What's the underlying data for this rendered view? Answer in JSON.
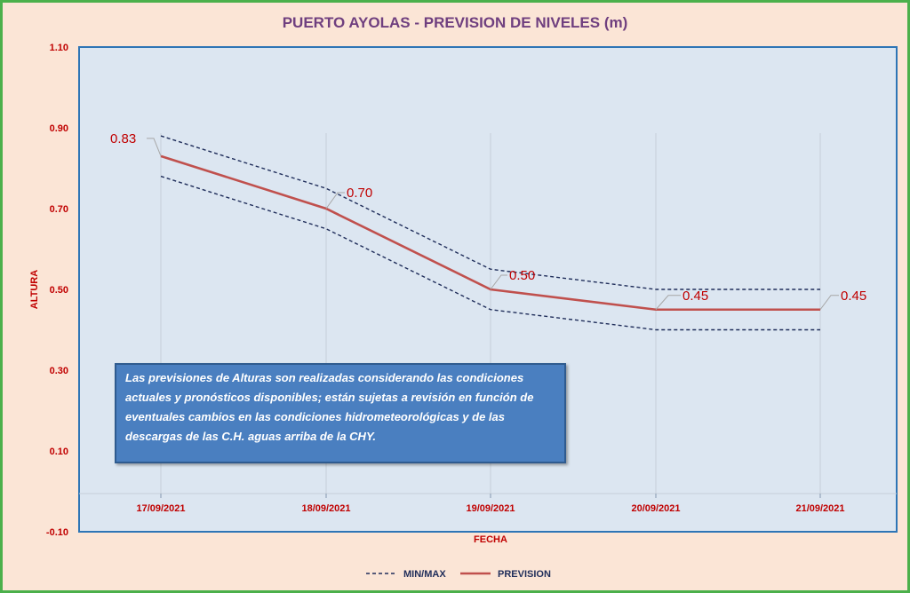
{
  "chart_data": {
    "type": "line",
    "title": "PUERTO AYOLAS - PREVISION DE NIVELES (m)",
    "xlabel": "FECHA",
    "ylabel": "ALTURA",
    "categories": [
      "17/09/2021",
      "18/09/2021",
      "19/09/2021",
      "20/09/2021",
      "21/09/2021"
    ],
    "y_ticks": [
      "1.10",
      "0.90",
      "0.70",
      "0.50",
      "0.30",
      "0.10",
      "-0.10"
    ],
    "ylim": [
      -0.1,
      1.1
    ],
    "series": [
      {
        "name": "PREVISION",
        "values": [
          0.83,
          0.7,
          0.5,
          0.45,
          0.45
        ],
        "labels": [
          "0.83",
          "0.70",
          "0.50",
          "0.45",
          "0.45"
        ],
        "color": "#c0504d",
        "style": "solid"
      },
      {
        "name": "MAX",
        "values": [
          0.88,
          0.75,
          0.55,
          0.5,
          0.5
        ],
        "color": "#1f2d5a",
        "style": "dashed"
      },
      {
        "name": "MIN",
        "values": [
          0.78,
          0.65,
          0.45,
          0.4,
          0.4
        ],
        "color": "#1f2d5a",
        "style": "dashed"
      }
    ],
    "legend": [
      {
        "label": "MIN/MAX",
        "style": "dashed",
        "color": "#1f2d5a"
      },
      {
        "label": "PREVISION",
        "style": "solid",
        "color": "#c0504d"
      }
    ],
    "legend_position": "bottom",
    "annotation": "Las previsiones de Alturas son realizadas considerando las condiciones actuales y pronósticos disponibles;  están sujetas a revisión en función de eventuales cambios en las condiciones hidrometeorológicas y de las descargas de las C.H. aguas arriba de la CHY.",
    "colors": {
      "plot_bg": "#dce6f1",
      "plot_border": "#2e75b6",
      "frame_bg": "#fbe5d6",
      "frame_border": "#4bb04b",
      "label": "#c00000"
    }
  }
}
